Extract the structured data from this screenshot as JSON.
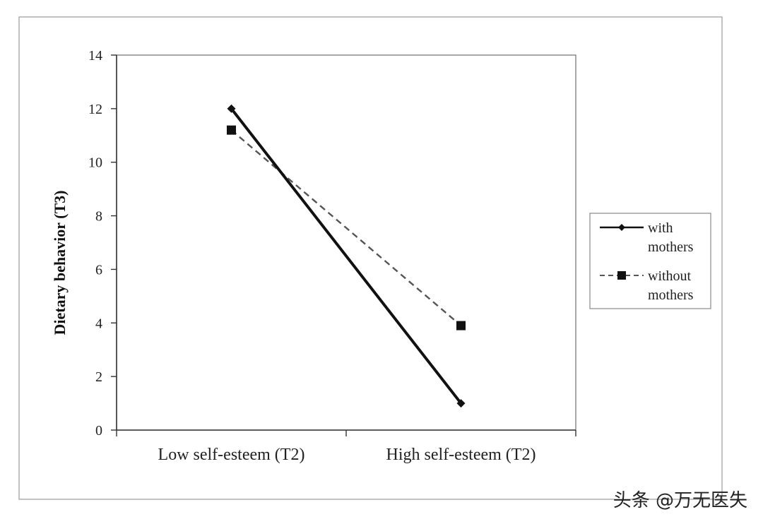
{
  "chart_data": {
    "type": "line",
    "categories": [
      "Low self-esteem (T2)",
      "High self-esteem (T2)"
    ],
    "series": [
      {
        "name": "with mothers",
        "legend_lines": [
          "with",
          "mothers"
        ],
        "values": [
          12.0,
          1.0
        ],
        "color": "#111111",
        "dash": false,
        "marker": "diamond"
      },
      {
        "name": "without mothers",
        "legend_lines": [
          "without",
          "mothers"
        ],
        "values": [
          11.2,
          3.9
        ],
        "color": "#555555",
        "dash": true,
        "marker": "square"
      }
    ],
    "ylabel": "Dietary behavior (T3)",
    "ylim": [
      0,
      14
    ],
    "yticks": [
      0,
      2,
      4,
      6,
      8,
      10,
      12,
      14
    ],
    "grid": false,
    "legend_position": "right"
  },
  "watermark": "头条 @万无医失"
}
